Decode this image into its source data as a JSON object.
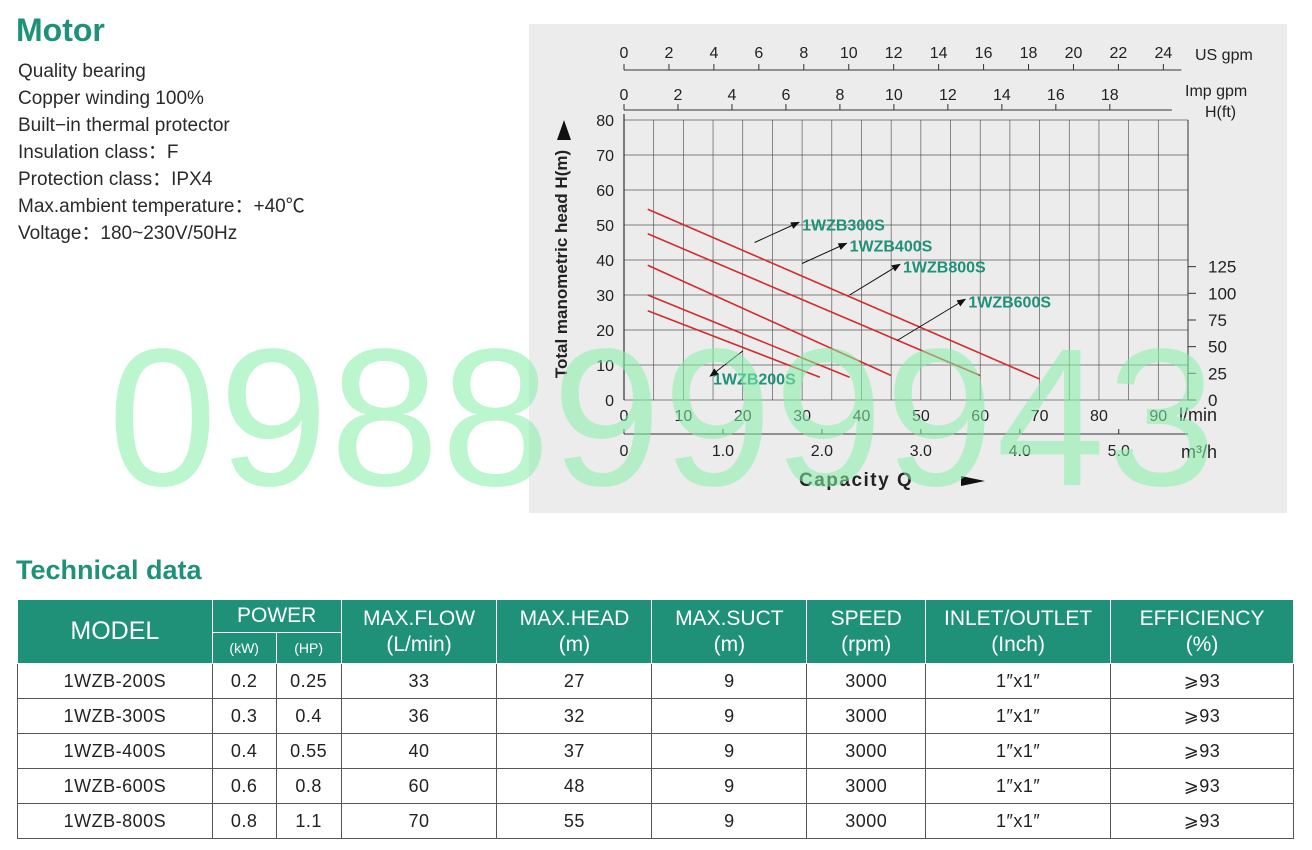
{
  "motor": {
    "title": "Motor",
    "specs": [
      "Quality bearing",
      "Copper winding 100%",
      "Built−in thermal protector",
      "Insulation class：F",
      "Protection class：IPX4",
      "Max.ambient temperature：+40℃",
      "Voltage：180~230V/50Hz"
    ]
  },
  "watermark": "0988999943",
  "chart_data": {
    "type": "line",
    "ylabel": "Total manometric head  H(m)",
    "xlabel": "Capacity  Q",
    "x_unit": "l/min",
    "xlim": [
      0,
      95
    ],
    "ylim": [
      0,
      80
    ],
    "y_ticks": [
      0,
      10,
      20,
      30,
      40,
      50,
      60,
      70,
      80
    ],
    "x_ticks": [
      0,
      10,
      20,
      30,
      40,
      50,
      60,
      70,
      80,
      90
    ],
    "us_gpm": {
      "unit": "US  gpm",
      "ticks": [
        0,
        2,
        4,
        6,
        8,
        10,
        12,
        14,
        16,
        18,
        20,
        22,
        24
      ]
    },
    "imp_gpm": {
      "unit": "Imp  gpm",
      "ticks": [
        0,
        2,
        4,
        6,
        8,
        10,
        12,
        14,
        16,
        18
      ]
    },
    "head_ft": {
      "unit": "H(ft)",
      "ticks": [
        0,
        25,
        50,
        75,
        100,
        125
      ]
    },
    "m3h": {
      "unit": "m³/h",
      "ticks": [
        "0",
        "1.0",
        "2.0",
        "3.0",
        "4.0",
        "5.0"
      ]
    },
    "series_color": "#d42b2b",
    "label_color": "#1f9179",
    "series": [
      {
        "name": "1WZB200S",
        "x": [
          4,
          33
        ],
        "y": [
          25.5,
          6.5
        ],
        "label_at": [
          15,
          4.5
        ],
        "arrow_to": [
          20,
          14
        ]
      },
      {
        "name": "1WZB300S",
        "x": [
          4,
          38
        ],
        "y": [
          30,
          6.5
        ],
        "label_at": [
          30,
          48.5
        ],
        "arrow_to": [
          22,
          45
        ]
      },
      {
        "name": "1WZB400S",
        "x": [
          4,
          45
        ],
        "y": [
          38.5,
          7
        ],
        "label_at": [
          38,
          42.5
        ],
        "arrow_to": [
          30,
          39
        ]
      },
      {
        "name": "1WZB800S",
        "x": [
          4,
          60
        ],
        "y": [
          47.5,
          7
        ],
        "label_at": [
          47,
          36.5
        ],
        "arrow_to": [
          38,
          30
        ]
      },
      {
        "name": "1WZB600S",
        "x": [
          4,
          70
        ],
        "y": [
          54.5,
          6
        ],
        "label_at": [
          58,
          26.5
        ],
        "arrow_to": [
          46,
          17
        ]
      }
    ]
  },
  "table": {
    "title": "Technical data",
    "headers": {
      "model": "MODEL",
      "power": "POWER",
      "kw": "(kW)",
      "hp": "(HP)",
      "flow": [
        "MAX.FLOW",
        "(L/min)"
      ],
      "head": [
        "MAX.HEAD",
        "(m)"
      ],
      "suct": [
        "MAX.SUCT",
        "(m)"
      ],
      "speed": [
        "SPEED",
        "(rpm)"
      ],
      "inlet": [
        "INLET/OUTLET",
        "(Inch)"
      ],
      "eff": [
        "EFFICIENCY",
        "(%)"
      ]
    },
    "rows": [
      [
        "1WZB-200S",
        "0.2",
        "0.25",
        "33",
        "27",
        "9",
        "3000",
        "1″x1″",
        "⩾93"
      ],
      [
        "1WZB-300S",
        "0.3",
        "0.4",
        "36",
        "32",
        "9",
        "3000",
        "1″x1″",
        "⩾93"
      ],
      [
        "1WZB-400S",
        "0.4",
        "0.55",
        "40",
        "37",
        "9",
        "3000",
        "1″x1″",
        "⩾93"
      ],
      [
        "1WZB-600S",
        "0.6",
        "0.8",
        "60",
        "48",
        "9",
        "3000",
        "1″x1″",
        "⩾93"
      ],
      [
        "1WZB-800S",
        "0.8",
        "1.1",
        "70",
        "55",
        "9",
        "3000",
        "1″x1″",
        "⩾93"
      ]
    ]
  }
}
